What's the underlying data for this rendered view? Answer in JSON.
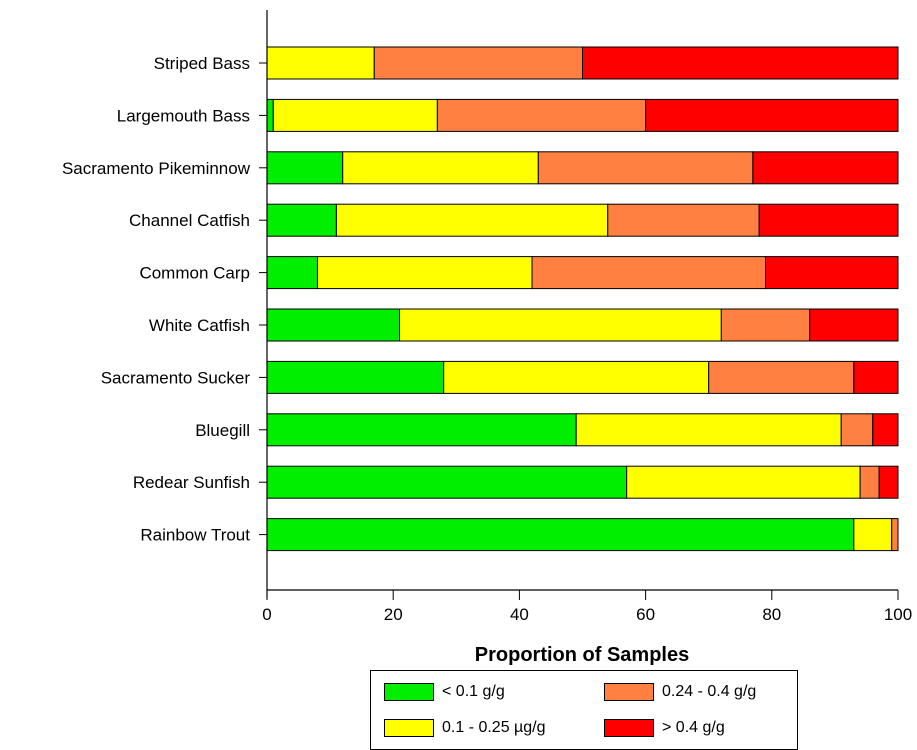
{
  "chart_data": {
    "type": "bar",
    "orientation": "horizontal",
    "stacked": true,
    "xlabel": "Proportion of Samples",
    "ylabel": "",
    "xlim": [
      0,
      100
    ],
    "xticks": [
      "0",
      "20",
      "40",
      "60",
      "80",
      "100"
    ],
    "grid": false,
    "legend_position": "bottom",
    "categories": [
      "Striped Bass",
      "Largemouth Bass",
      "Sacramento Pikeminnow",
      "Channel Catfish",
      "Common Carp",
      "White Catfish",
      "Sacramento Sucker",
      "Bluegill",
      "Redear Sunfish",
      "Rainbow Trout"
    ],
    "series": [
      {
        "name": "< 0.1   g/g",
        "color": "#00ee00",
        "values": [
          0,
          1,
          12,
          11,
          8,
          21,
          28,
          49,
          57,
          93
        ]
      },
      {
        "name": "0.1 - 0.25 µg/g",
        "color": "#ffff00",
        "values": [
          17,
          26,
          31,
          43,
          34,
          51,
          42,
          42,
          37,
          6
        ]
      },
      {
        "name": "0.24 - 0.4   g/g",
        "color": "#ff8040",
        "values": [
          33,
          33,
          34,
          24,
          37,
          14,
          23,
          5,
          3,
          1
        ]
      },
      {
        "name": "> 0.4   g/g",
        "color": "#ff0000",
        "values": [
          50,
          40,
          23,
          22,
          21,
          14,
          7,
          4,
          3,
          0
        ]
      }
    ]
  },
  "legend": {
    "items": [
      {
        "label": "< 0.1   g/g",
        "color": "#00ee00"
      },
      {
        "label": "0.24 - 0.4   g/g",
        "color": "#ff8040"
      },
      {
        "label": "0.1 - 0.25 µg/g",
        "color": "#ffff00"
      },
      {
        "label": "> 0.4   g/g",
        "color": "#ff0000"
      }
    ]
  }
}
